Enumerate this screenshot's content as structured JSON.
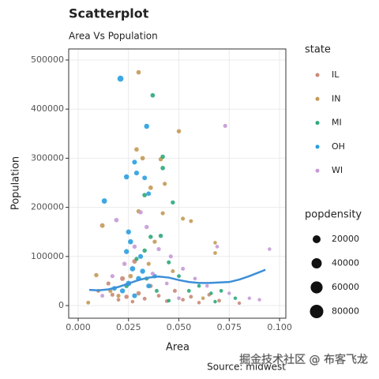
{
  "chart_data": {
    "type": "scatter",
    "title": "Scatterplot",
    "subtitle": "Area Vs Population",
    "caption": "Source: midwest",
    "watermark": "掘金技术社区 @ 布客飞龙",
    "xlabel": "Area",
    "ylabel": "Population",
    "xlim": [
      -0.0047,
      0.1031
    ],
    "xticks": [
      {
        "value": 0,
        "label": "0.000"
      },
      {
        "value": 0.025,
        "label": "0.025"
      },
      {
        "value": 0.05,
        "label": "0.050"
      },
      {
        "value": 0.075,
        "label": "0.075"
      },
      {
        "value": 0.1,
        "label": "0.100"
      }
    ],
    "ylim": [
      -25700,
      522500
    ],
    "yticks": [
      0,
      100000,
      200000,
      300000,
      400000,
      500000
    ],
    "grid": true,
    "legend_title": "state",
    "legend_position": "right",
    "size_legend": {
      "title": "popdensity",
      "values": [
        20000,
        40000,
        60000,
        80000
      ]
    },
    "series": [
      {
        "name": "IL",
        "color": "#c98a77",
        "x": [
          0.01,
          0.017,
          0.02,
          0.024,
          0.027,
          0.03,
          0.033,
          0.036,
          0.04,
          0.044,
          0.048,
          0.052,
          0.056,
          0.06,
          0.065,
          0.07,
          0.08,
          0.022,
          0.028,
          0.015
        ],
        "values": [
          30000,
          22000,
          12000,
          18000,
          8000,
          25000,
          14000,
          40000,
          20000,
          9000,
          30000,
          12000,
          18000,
          6000,
          22000,
          10000,
          5000,
          55000,
          90000,
          45000
        ],
        "sizes": [
          1500,
          1800,
          1200,
          2500,
          1000,
          3000,
          1500,
          2000,
          1300,
          1100,
          1600,
          1200,
          1400,
          900,
          1000,
          1200,
          800,
          4000,
          3500,
          2000
        ]
      },
      {
        "name": "IN",
        "color": "#c49a55",
        "x": [
          0.03,
          0.05,
          0.029,
          0.032,
          0.041,
          0.036,
          0.043,
          0.012,
          0.052,
          0.056,
          0.068,
          0.068,
          0.042,
          0.03,
          0.038,
          0.009,
          0.005,
          0.016,
          0.026,
          0.047,
          0.062,
          0.035,
          0.02
        ],
        "values": [
          475000,
          355000,
          318000,
          300000,
          298000,
          240000,
          248000,
          163000,
          177000,
          172000,
          128000,
          107000,
          188000,
          192000,
          130000,
          62000,
          6000,
          30000,
          60000,
          70000,
          15000,
          85000,
          20000
        ],
        "sizes": [
          3000,
          2500,
          2800,
          3000,
          2500,
          3000,
          2000,
          3500,
          1800,
          1500,
          1000,
          1200,
          2000,
          2500,
          2200,
          2500,
          1500,
          2000,
          3000,
          1500,
          1000,
          2000,
          1800
        ]
      },
      {
        "name": "MI",
        "color": "#2ea97b",
        "x": [
          0.037,
          0.042,
          0.042,
          0.033,
          0.047,
          0.041,
          0.036,
          0.033,
          0.029,
          0.045,
          0.05,
          0.055,
          0.06,
          0.066,
          0.071,
          0.078,
          0.034,
          0.039,
          0.024,
          0.045,
          0.068
        ],
        "values": [
          428000,
          303000,
          280000,
          225000,
          210000,
          142000,
          140000,
          112000,
          95000,
          88000,
          60000,
          30000,
          40000,
          25000,
          30000,
          15000,
          55000,
          30000,
          40000,
          10000,
          8000
        ],
        "sizes": [
          3000,
          2800,
          3000,
          3000,
          2200,
          2500,
          2500,
          2400,
          2000,
          1800,
          1500,
          1400,
          1200,
          1000,
          1200,
          900,
          2000,
          1500,
          2500,
          1100,
          900
        ]
      },
      {
        "name": "OH",
        "color": "#2a9fe0",
        "x": [
          0.021,
          0.034,
          0.013,
          0.024,
          0.028,
          0.029,
          0.033,
          0.035,
          0.025,
          0.026,
          0.024,
          0.027,
          0.03,
          0.032,
          0.025,
          0.022,
          0.028,
          0.035,
          0.018,
          0.038,
          0.031
        ],
        "values": [
          462000,
          365000,
          213000,
          262000,
          292000,
          270000,
          260000,
          228000,
          150000,
          130000,
          110000,
          75000,
          55000,
          70000,
          45000,
          30000,
          20000,
          40000,
          35000,
          60000,
          100000
        ],
        "sizes": [
          9000,
          5000,
          6000,
          5000,
          4000,
          4000,
          3500,
          3000,
          4500,
          5000,
          4500,
          6000,
          5500,
          5000,
          6000,
          4500,
          4000,
          4000,
          3500,
          3000,
          4000
        ]
      },
      {
        "name": "WI",
        "color": "#c79ad6",
        "x": [
          0.073,
          0.019,
          0.031,
          0.095,
          0.069,
          0.034,
          0.04,
          0.046,
          0.052,
          0.058,
          0.064,
          0.075,
          0.085,
          0.09,
          0.028,
          0.023,
          0.017,
          0.012,
          0.044,
          0.05,
          0.037
        ],
        "values": [
          366000,
          174000,
          190000,
          115000,
          120000,
          160000,
          115000,
          100000,
          75000,
          55000,
          40000,
          25000,
          15000,
          12000,
          120000,
          85000,
          60000,
          20000,
          45000,
          15000,
          65000
        ],
        "sizes": [
          2000,
          3000,
          2500,
          1000,
          1200,
          2500,
          2200,
          1800,
          1500,
          1200,
          1000,
          900,
          800,
          800,
          2500,
          2500,
          2000,
          1500,
          1300,
          1200,
          1800
        ]
      }
    ],
    "smooth": {
      "color": "#3d8fd8",
      "x": [
        0.0055,
        0.01,
        0.015,
        0.02,
        0.025,
        0.03,
        0.035,
        0.04,
        0.045,
        0.05,
        0.055,
        0.06,
        0.065,
        0.07,
        0.075,
        0.08,
        0.085,
        0.09,
        0.093
      ],
      "values": [
        32000,
        31000,
        33000,
        38000,
        45000,
        52000,
        57000,
        59000,
        57000,
        52000,
        48000,
        46000,
        46000,
        47000,
        48000,
        53000,
        60000,
        68000,
        73000
      ]
    }
  }
}
